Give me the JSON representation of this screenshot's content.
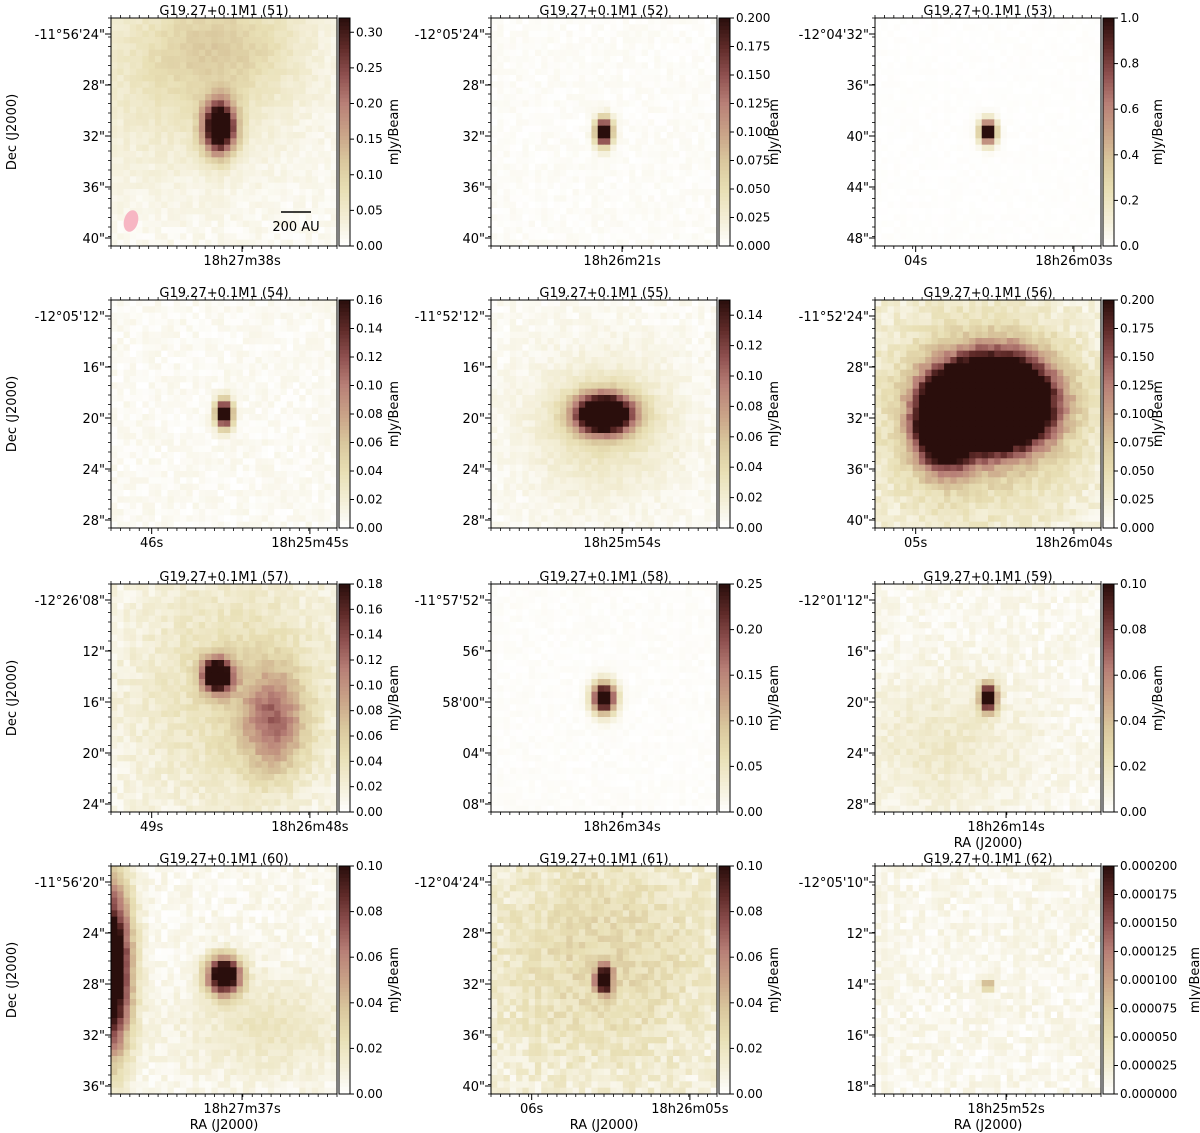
{
  "figure": {
    "colormap": [
      "#ffffff",
      "#f3eed6",
      "#e8dfb4",
      "#d9c79d",
      "#c9a287",
      "#b88077",
      "#8f5150",
      "#5e2a28",
      "#2a0e0c"
    ],
    "beam_color": "#f7b6c3"
  },
  "chart_data": [
    {
      "type": "heatmap",
      "title": "G19.27+0.1M1 (51)",
      "ylabel": "Dec (J2000)",
      "xlabel": "",
      "dec_ticks": [
        "-11°56'24\"",
        "28\"",
        "32\"",
        "36\"",
        "40\""
      ],
      "ra_ticks": [
        "18h27m38s"
      ],
      "colorbar": {
        "label": "mJy/Beam",
        "min": 0,
        "max": 0.32,
        "ticks": [
          "0.00",
          "0.05",
          "0.10",
          "0.15",
          "0.20",
          "0.25",
          "0.30"
        ],
        "tick_values": [
          0,
          0.05,
          0.1,
          0.15,
          0.2,
          0.25,
          0.3
        ]
      },
      "scale_bar": "200 AU",
      "beam": true,
      "sources": [
        {
          "x": 0.48,
          "y": 0.48,
          "sx": 0.05,
          "sy": 0.08,
          "peak": 1.3
        },
        {
          "x": 0.5,
          "y": 0.1,
          "sx": 0.25,
          "sy": 0.18,
          "peak": 0.22
        },
        {
          "x": 0.3,
          "y": 0.3,
          "sx": 0.35,
          "sy": 0.3,
          "peak": 0.14
        }
      ],
      "background": 0.05
    },
    {
      "type": "heatmap",
      "title": "G19.27+0.1M1 (52)",
      "ylabel": "",
      "xlabel": "",
      "dec_ticks": [
        "-12°05'24\"",
        "28\"",
        "32\"",
        "36\"",
        "40\""
      ],
      "ra_ticks": [
        "18h26m21s"
      ],
      "colorbar": {
        "label": "mJy/Beam",
        "min": 0,
        "max": 0.2,
        "ticks": [
          "0.000",
          "0.025",
          "0.050",
          "0.075",
          "0.100",
          "0.125",
          "0.150",
          "0.175",
          "0.200"
        ],
        "tick_values": [
          0,
          0.025,
          0.05,
          0.075,
          0.1,
          0.125,
          0.15,
          0.175,
          0.2
        ]
      },
      "sources": [
        {
          "x": 0.5,
          "y": 0.5,
          "sx": 0.025,
          "sy": 0.04,
          "peak": 1.4
        }
      ],
      "background": 0.03
    },
    {
      "type": "heatmap",
      "title": "G19.27+0.1M1 (53)",
      "ylabel": "",
      "xlabel": "",
      "dec_ticks": [
        "-12°04'32\"",
        "36\"",
        "40\"",
        "44\"",
        "48\""
      ],
      "ra_ticks": [
        "04s",
        "18h26m03s"
      ],
      "colorbar": {
        "label": "mJy/Beam",
        "min": 0,
        "max": 1.0,
        "ticks": [
          "0.0",
          "0.2",
          "0.4",
          "0.6",
          "0.8",
          "1.0"
        ],
        "tick_values": [
          0,
          0.2,
          0.4,
          0.6,
          0.8,
          1.0
        ]
      },
      "sources": [
        {
          "x": 0.5,
          "y": 0.5,
          "sx": 0.025,
          "sy": 0.035,
          "peak": 1.3
        }
      ],
      "background": 0.01
    },
    {
      "type": "heatmap",
      "title": "G19.27+0.1M1 (54)",
      "ylabel": "Dec (J2000)",
      "xlabel": "",
      "dec_ticks": [
        "-12°05'12\"",
        "16\"",
        "20\"",
        "24\"",
        "28\""
      ],
      "ra_ticks": [
        "46s",
        "18h25m45s"
      ],
      "colorbar": {
        "label": "mJy/Beam",
        "min": 0,
        "max": 0.16,
        "ticks": [
          "0.00",
          "0.02",
          "0.04",
          "0.06",
          "0.08",
          "0.10",
          "0.12",
          "0.14",
          "0.16"
        ],
        "tick_values": [
          0,
          0.02,
          0.04,
          0.06,
          0.08,
          0.1,
          0.12,
          0.14,
          0.16
        ]
      },
      "sources": [
        {
          "x": 0.5,
          "y": 0.5,
          "sx": 0.025,
          "sy": 0.04,
          "peak": 1.4
        }
      ],
      "background": 0.05
    },
    {
      "type": "heatmap",
      "title": "G19.27+0.1M1 (55)",
      "ylabel": "",
      "xlabel": "",
      "dec_ticks": [
        "-11°52'12\"",
        "16\"",
        "20\"",
        "24\"",
        "28\""
      ],
      "ra_ticks": [
        "18h25m54s"
      ],
      "colorbar": {
        "label": "mJy/Beam",
        "min": 0,
        "max": 0.15,
        "ticks": [
          "0.00",
          "0.02",
          "0.04",
          "0.06",
          "0.08",
          "0.10",
          "0.12",
          "0.14"
        ],
        "tick_values": [
          0,
          0.02,
          0.04,
          0.06,
          0.08,
          0.1,
          0.12,
          0.14
        ]
      },
      "sources": [
        {
          "x": 0.5,
          "y": 0.5,
          "sx": 0.09,
          "sy": 0.06,
          "peak": 1.5
        },
        {
          "x": 0.5,
          "y": 0.55,
          "sx": 0.22,
          "sy": 0.2,
          "peak": 0.2
        }
      ],
      "background": 0.05
    },
    {
      "type": "heatmap",
      "title": "G19.27+0.1M1 (56)",
      "ylabel": "",
      "xlabel": "",
      "dec_ticks": [
        "-11°52'24\"",
        "28\"",
        "32\"",
        "36\"",
        "40\""
      ],
      "ra_ticks": [
        "05s",
        "18h26m04s"
      ],
      "colorbar": {
        "label": "mJy/Beam",
        "min": 0,
        "max": 0.2,
        "ticks": [
          "0.000",
          "0.025",
          "0.050",
          "0.075",
          "0.100",
          "0.125",
          "0.150",
          "0.175",
          "0.200"
        ],
        "tick_values": [
          0,
          0.025,
          0.05,
          0.075,
          0.1,
          0.125,
          0.15,
          0.175,
          0.2
        ]
      },
      "sources": [
        {
          "x": 0.53,
          "y": 0.45,
          "sx": 0.16,
          "sy": 0.13,
          "peak": 2.6
        },
        {
          "x": 0.3,
          "y": 0.55,
          "sx": 0.08,
          "sy": 0.12,
          "peak": 1.6
        },
        {
          "x": 0.45,
          "y": 0.5,
          "sx": 0.35,
          "sy": 0.35,
          "peak": 0.25
        }
      ],
      "background": 0.1
    },
    {
      "type": "heatmap",
      "title": "G19.27+0.1M1 (57)",
      "ylabel": "Dec (J2000)",
      "xlabel": "",
      "dec_ticks": [
        "-12°26'08\"",
        "12\"",
        "16\"",
        "20\"",
        "24\""
      ],
      "ra_ticks": [
        "49s",
        "18h26m48s"
      ],
      "colorbar": {
        "label": "mJy/Beam",
        "min": 0,
        "max": 0.18,
        "ticks": [
          "0.00",
          "0.02",
          "0.04",
          "0.06",
          "0.08",
          "0.10",
          "0.12",
          "0.14",
          "0.16",
          "0.18"
        ],
        "tick_values": [
          0,
          0.02,
          0.04,
          0.06,
          0.08,
          0.1,
          0.12,
          0.14,
          0.16,
          0.18
        ]
      },
      "sources": [
        {
          "x": 0.47,
          "y": 0.4,
          "sx": 0.045,
          "sy": 0.05,
          "peak": 1.4
        },
        {
          "x": 0.72,
          "y": 0.6,
          "sx": 0.1,
          "sy": 0.16,
          "peak": 0.5
        },
        {
          "x": 0.55,
          "y": 0.45,
          "sx": 0.3,
          "sy": 0.35,
          "peak": 0.2
        }
      ],
      "background": 0.08
    },
    {
      "type": "heatmap",
      "title": "G19.27+0.1M1 (58)",
      "ylabel": "",
      "xlabel": "",
      "dec_ticks": [
        "-11°57'52\"",
        "56\"",
        "58'00\"",
        "04\"",
        "08\""
      ],
      "ra_ticks": [
        "18h26m34s"
      ],
      "colorbar": {
        "label": "mJy/Beam",
        "min": 0,
        "max": 0.25,
        "ticks": [
          "0.00",
          "0.05",
          "0.10",
          "0.15",
          "0.20",
          "0.25"
        ],
        "tick_values": [
          0,
          0.05,
          0.1,
          0.15,
          0.2,
          0.25
        ]
      },
      "sources": [
        {
          "x": 0.5,
          "y": 0.5,
          "sx": 0.035,
          "sy": 0.045,
          "peak": 1.4
        }
      ],
      "background": 0.02
    },
    {
      "type": "heatmap",
      "title": "G19.27+0.1M1 (59)",
      "ylabel": "",
      "xlabel": "RA (J2000)",
      "dec_ticks": [
        "-12°01'12\"",
        "16\"",
        "20\"",
        "24\"",
        "28\""
      ],
      "ra_ticks": [
        "18h26m14s"
      ],
      "colorbar": {
        "label": "mJy/Beam",
        "min": 0,
        "max": 0.1,
        "ticks": [
          "0.00",
          "0.02",
          "0.04",
          "0.06",
          "0.08",
          "0.10"
        ],
        "tick_values": [
          0,
          0.02,
          0.04,
          0.06,
          0.08,
          0.1
        ]
      },
      "sources": [
        {
          "x": 0.5,
          "y": 0.5,
          "sx": 0.025,
          "sy": 0.04,
          "peak": 1.4
        },
        {
          "x": 0.3,
          "y": 0.7,
          "sx": 0.25,
          "sy": 0.2,
          "peak": 0.12
        }
      ],
      "background": 0.07
    },
    {
      "type": "heatmap",
      "title": "G19.27+0.1M1 (60)",
      "ylabel": "Dec (J2000)",
      "xlabel": "RA (J2000)",
      "dec_ticks": [
        "-11°56'20\"",
        "24\"",
        "28\"",
        "32\"",
        "36\""
      ],
      "ra_ticks": [
        "18h27m37s"
      ],
      "colorbar": {
        "label": "mJy/Beam",
        "min": 0,
        "max": 0.1,
        "ticks": [
          "0.00",
          "0.02",
          "0.04",
          "0.06",
          "0.08",
          "0.10"
        ],
        "tick_values": [
          0,
          0.02,
          0.04,
          0.06,
          0.08,
          0.1
        ]
      },
      "sources": [
        {
          "x": 0.5,
          "y": 0.48,
          "sx": 0.05,
          "sy": 0.055,
          "peak": 1.4
        },
        {
          "x": 0.0,
          "y": 0.45,
          "sx": 0.06,
          "sy": 0.25,
          "peak": 1.4
        },
        {
          "x": 0.7,
          "y": 0.7,
          "sx": 0.25,
          "sy": 0.15,
          "peak": 0.15
        }
      ],
      "background": 0.07
    },
    {
      "type": "heatmap",
      "title": "G19.27+0.1M1 (61)",
      "ylabel": "",
      "xlabel": "RA (J2000)",
      "dec_ticks": [
        "-12°04'24\"",
        "28\"",
        "32\"",
        "36\"",
        "40\""
      ],
      "ra_ticks": [
        "06s",
        "18h26m05s"
      ],
      "colorbar": {
        "label": "mJy/Beam",
        "min": 0,
        "max": 0.1,
        "ticks": [
          "0.00",
          "0.02",
          "0.04",
          "0.06",
          "0.08",
          "0.10"
        ],
        "tick_values": [
          0,
          0.02,
          0.04,
          0.06,
          0.08,
          0.1
        ]
      },
      "sources": [
        {
          "x": 0.5,
          "y": 0.5,
          "sx": 0.025,
          "sy": 0.04,
          "peak": 1.2
        },
        {
          "x": 0.5,
          "y": 0.4,
          "sx": 0.35,
          "sy": 0.35,
          "peak": 0.2
        }
      ],
      "background": 0.12
    },
    {
      "type": "heatmap",
      "title": "G19.27+0.1M1 (62)",
      "ylabel": "",
      "xlabel": "RA (J2000)",
      "dec_ticks": [
        "-12°05'10\"",
        "12\"",
        "14\"",
        "16\"",
        "18\""
      ],
      "ra_ticks": [
        "18h25m52s"
      ],
      "colorbar": {
        "label": "mJy/Beam",
        "min": 0,
        "max": 0.0002,
        "ticks": [
          "0.000000",
          "0.000025",
          "0.000050",
          "0.000075",
          "0.000100",
          "0.000125",
          "0.000150",
          "0.000175",
          "0.000200"
        ],
        "tick_values": [
          0,
          2.5e-05,
          5e-05,
          7.5e-05,
          0.0001,
          0.000125,
          0.00015,
          0.000175,
          0.0002
        ]
      },
      "sources": [
        {
          "x": 0.5,
          "y": 0.52,
          "sx": 0.02,
          "sy": 0.02,
          "peak": 0.45
        }
      ],
      "background": 0.08
    }
  ]
}
